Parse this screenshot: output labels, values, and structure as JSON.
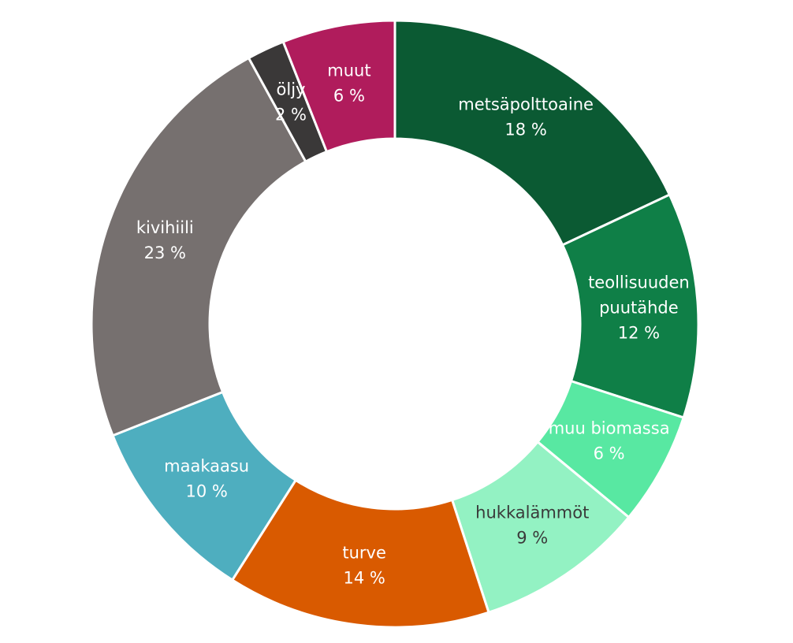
{
  "chart_data": {
    "type": "pie",
    "donut": true,
    "legend": "none",
    "slices": [
      {
        "label_lines": [
          "metsäpolttoaine"
        ],
        "value_label": "18 %",
        "value": 18,
        "color": "#0b5a33",
        "text_color": "#ffffff"
      },
      {
        "label_lines": [
          "teollisuuden",
          "puutähde"
        ],
        "value_label": "12 %",
        "value": 12,
        "color": "#0f7f47",
        "text_color": "#ffffff"
      },
      {
        "label_lines": [
          "muu biomassa"
        ],
        "value_label": "6 %",
        "value": 6,
        "color": "#58e8a2",
        "text_color": "#ffffff"
      },
      {
        "label_lines": [
          "hukkalämmöt"
        ],
        "value_label": "9 %",
        "value": 9,
        "color": "#93f2c3",
        "text_color": "#3a3a3a"
      },
      {
        "label_lines": [
          "turve"
        ],
        "value_label": "14 %",
        "value": 14,
        "color": "#d95a00",
        "text_color": "#ffffff"
      },
      {
        "label_lines": [
          "maakaasu"
        ],
        "value_label": "10 %",
        "value": 10,
        "color": "#4eaebf",
        "text_color": "#ffffff"
      },
      {
        "label_lines": [
          "kivihiili"
        ],
        "value_label": "23 %",
        "value": 23,
        "color": "#76706f",
        "text_color": "#ffffff"
      },
      {
        "label_lines": [
          "öljy"
        ],
        "value_label": "2 %",
        "value": 2,
        "color": "#3a3838",
        "text_color": "#ffffff"
      },
      {
        "label_lines": [
          "muut"
        ],
        "value_label": "6 %",
        "value": 6,
        "color": "#b01c5c",
        "text_color": "#ffffff"
      }
    ]
  }
}
